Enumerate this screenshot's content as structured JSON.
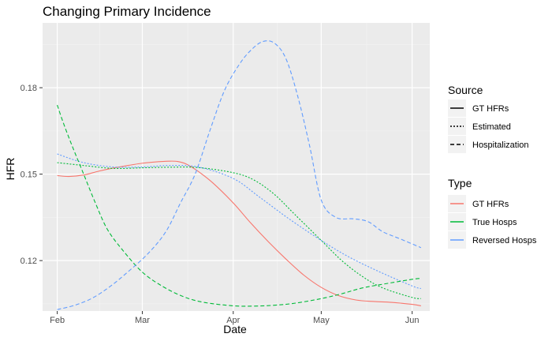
{
  "chart_data": {
    "type": "line",
    "title": "Changing Primary Incidence",
    "xlabel": "Date",
    "ylabel": "HFR",
    "x_ticks": [
      {
        "label": "Feb",
        "x": "2020-02-01"
      },
      {
        "label": "Mar",
        "x": "2020-03-01"
      },
      {
        "label": "Apr",
        "x": "2020-04-01"
      },
      {
        "label": "May",
        "x": "2020-05-01"
      },
      {
        "label": "Jun",
        "x": "2020-06-01"
      }
    ],
    "xlim": [
      "2020-01-27",
      "2020-06-07"
    ],
    "y_ticks": [
      0.12,
      0.15,
      0.18
    ],
    "ylim": [
      0.1025,
      0.2025
    ],
    "grid": true,
    "legend_position": "right",
    "legends": [
      {
        "title": "Source",
        "entries": [
          {
            "label": "GT HFRs",
            "linetype": "solid"
          },
          {
            "label": "Estimated",
            "linetype": "dotted"
          },
          {
            "label": "Hospitalization",
            "linetype": "dashed"
          }
        ]
      },
      {
        "title": "Type",
        "entries": [
          {
            "label": "GT HFRs",
            "color": "#F8766D"
          },
          {
            "label": "True Hosps",
            "color": "#00BA38"
          },
          {
            "label": "Reversed Hosps",
            "color": "#619CFF"
          }
        ]
      }
    ],
    "series": [
      {
        "type": "GT HFRs",
        "source": "GT HFRs",
        "color": "#F8766D",
        "linetype": "solid",
        "points": [
          [
            "2020-02-01",
            0.1495
          ],
          [
            "2020-02-05",
            0.1492
          ],
          [
            "2020-02-10",
            0.1497
          ],
          [
            "2020-02-15",
            0.151
          ],
          [
            "2020-02-20",
            0.1521
          ],
          [
            "2020-02-25",
            0.153
          ],
          [
            "2020-03-01",
            0.1538
          ],
          [
            "2020-03-05",
            0.1542
          ],
          [
            "2020-03-10",
            0.1545
          ],
          [
            "2020-03-13",
            0.1544
          ],
          [
            "2020-03-16",
            0.1535
          ],
          [
            "2020-03-20",
            0.151
          ],
          [
            "2020-03-25",
            0.147
          ],
          [
            "2020-04-01",
            0.14
          ],
          [
            "2020-04-07",
            0.133
          ],
          [
            "2020-04-13",
            0.1265
          ],
          [
            "2020-04-19",
            0.1205
          ],
          [
            "2020-04-25",
            0.115
          ],
          [
            "2020-05-01",
            0.1107
          ],
          [
            "2020-05-07",
            0.1078
          ],
          [
            "2020-05-13",
            0.1063
          ],
          [
            "2020-05-19",
            0.1058
          ],
          [
            "2020-05-25",
            0.1055
          ],
          [
            "2020-06-01",
            0.1048
          ],
          [
            "2020-06-04",
            0.1043
          ]
        ]
      },
      {
        "type": "True Hosps",
        "source": "Estimated",
        "color": "#00BA38",
        "linetype": "dotted",
        "points": [
          [
            "2020-02-01",
            0.154
          ],
          [
            "2020-02-10",
            0.153
          ],
          [
            "2020-02-20",
            0.152
          ],
          [
            "2020-03-01",
            0.1522
          ],
          [
            "2020-03-10",
            0.1524
          ],
          [
            "2020-03-20",
            0.1523
          ],
          [
            "2020-04-01",
            0.1505
          ],
          [
            "2020-04-08",
            0.148
          ],
          [
            "2020-04-15",
            0.143
          ],
          [
            "2020-04-22",
            0.136
          ],
          [
            "2020-05-01",
            0.127
          ],
          [
            "2020-05-08",
            0.12
          ],
          [
            "2020-05-15",
            0.1145
          ],
          [
            "2020-05-22",
            0.1105
          ],
          [
            "2020-06-01",
            0.1072
          ],
          [
            "2020-06-04",
            0.1068
          ]
        ]
      },
      {
        "type": "Reversed Hosps",
        "source": "Estimated",
        "color": "#619CFF",
        "linetype": "dotted",
        "points": [
          [
            "2020-02-01",
            0.157
          ],
          [
            "2020-02-10",
            0.154
          ],
          [
            "2020-02-20",
            0.1525
          ],
          [
            "2020-03-01",
            0.1525
          ],
          [
            "2020-03-10",
            0.153
          ],
          [
            "2020-03-20",
            0.1525
          ],
          [
            "2020-04-01",
            0.1485
          ],
          [
            "2020-04-10",
            0.142
          ],
          [
            "2020-04-20",
            0.1345
          ],
          [
            "2020-05-01",
            0.127
          ],
          [
            "2020-05-10",
            0.1215
          ],
          [
            "2020-05-20",
            0.1165
          ],
          [
            "2020-06-01",
            0.1112
          ],
          [
            "2020-06-04",
            0.1103
          ]
        ]
      },
      {
        "type": "True Hosps",
        "source": "Hospitalization",
        "color": "#00BA38",
        "linetype": "dashed",
        "points": [
          [
            "2020-02-01",
            0.174
          ],
          [
            "2020-02-03",
            0.168
          ],
          [
            "2020-02-06",
            0.16
          ],
          [
            "2020-02-10",
            0.15
          ],
          [
            "2020-02-14",
            0.14
          ],
          [
            "2020-02-18",
            0.131
          ],
          [
            "2020-02-23",
            0.124
          ],
          [
            "2020-03-01",
            0.116
          ],
          [
            "2020-03-08",
            0.111
          ],
          [
            "2020-03-15",
            0.1075
          ],
          [
            "2020-03-22",
            0.1055
          ],
          [
            "2020-04-01",
            0.1043
          ],
          [
            "2020-04-08",
            0.1042
          ],
          [
            "2020-04-15",
            0.1045
          ],
          [
            "2020-04-22",
            0.1052
          ],
          [
            "2020-05-01",
            0.1068
          ],
          [
            "2020-05-08",
            0.1085
          ],
          [
            "2020-05-15",
            0.1105
          ],
          [
            "2020-05-22",
            0.1118
          ],
          [
            "2020-06-01",
            0.1135
          ],
          [
            "2020-06-04",
            0.1138
          ]
        ]
      },
      {
        "type": "Reversed Hosps",
        "source": "Hospitalization",
        "color": "#619CFF",
        "linetype": "dashed",
        "points": [
          [
            "2020-02-01",
            0.103
          ],
          [
            "2020-02-07",
            0.1045
          ],
          [
            "2020-02-13",
            0.107
          ],
          [
            "2020-02-19",
            0.111
          ],
          [
            "2020-02-25",
            0.116
          ],
          [
            "2020-03-03",
            0.1225
          ],
          [
            "2020-03-09",
            0.13
          ],
          [
            "2020-03-14",
            0.14
          ],
          [
            "2020-03-19",
            0.15
          ],
          [
            "2020-03-24",
            0.165
          ],
          [
            "2020-03-29",
            0.179
          ],
          [
            "2020-04-03",
            0.188
          ],
          [
            "2020-04-07",
            0.193
          ],
          [
            "2020-04-11",
            0.196
          ],
          [
            "2020-04-15",
            0.1955
          ],
          [
            "2020-04-19",
            0.19
          ],
          [
            "2020-04-23",
            0.177
          ],
          [
            "2020-04-27",
            0.16
          ],
          [
            "2020-05-01",
            0.141
          ],
          [
            "2020-05-06",
            0.135
          ],
          [
            "2020-05-12",
            0.1345
          ],
          [
            "2020-05-17",
            0.1335
          ],
          [
            "2020-05-22",
            0.13
          ],
          [
            "2020-05-28",
            0.1275
          ],
          [
            "2020-06-04",
            0.1245
          ]
        ]
      }
    ]
  }
}
